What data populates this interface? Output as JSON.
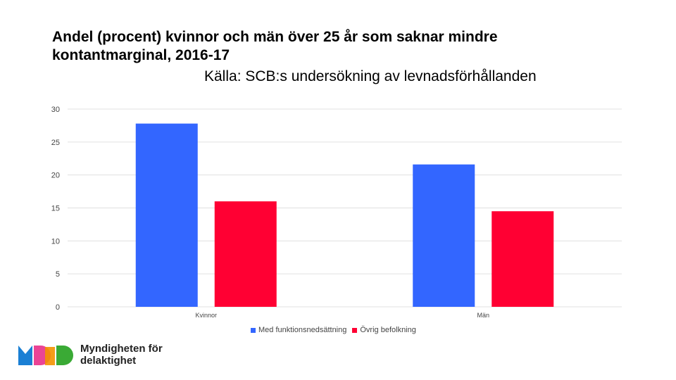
{
  "chart_data": {
    "type": "bar",
    "title_line1": "Andel (procent) kvinnor och män över 25 år som saknar mindre",
    "title_line2": "kontantmarginal, 2016-17",
    "subtitle": "Källa: SCB:s undersökning av levnadsförhållanden",
    "categories": [
      "Kvinnor",
      "Män"
    ],
    "series": [
      {
        "name": "Med funktionsnedsättning",
        "color": "#3366ff",
        "values": [
          27.8,
          21.6
        ]
      },
      {
        "name": "Övrig befolkning",
        "color": "#ff0033",
        "values": [
          16.0,
          14.5
        ]
      }
    ],
    "ylim": [
      0,
      30
    ],
    "yticks": [
      "0",
      "5",
      "10",
      "15",
      "20",
      "25",
      "30"
    ],
    "grid": true,
    "legend_position": "bottom"
  },
  "logo": {
    "line1": "Myndigheten för",
    "line2": "delaktighet",
    "colors": [
      "#1a7fd4",
      "#e8308a",
      "#f39200",
      "#3aaa35"
    ]
  }
}
